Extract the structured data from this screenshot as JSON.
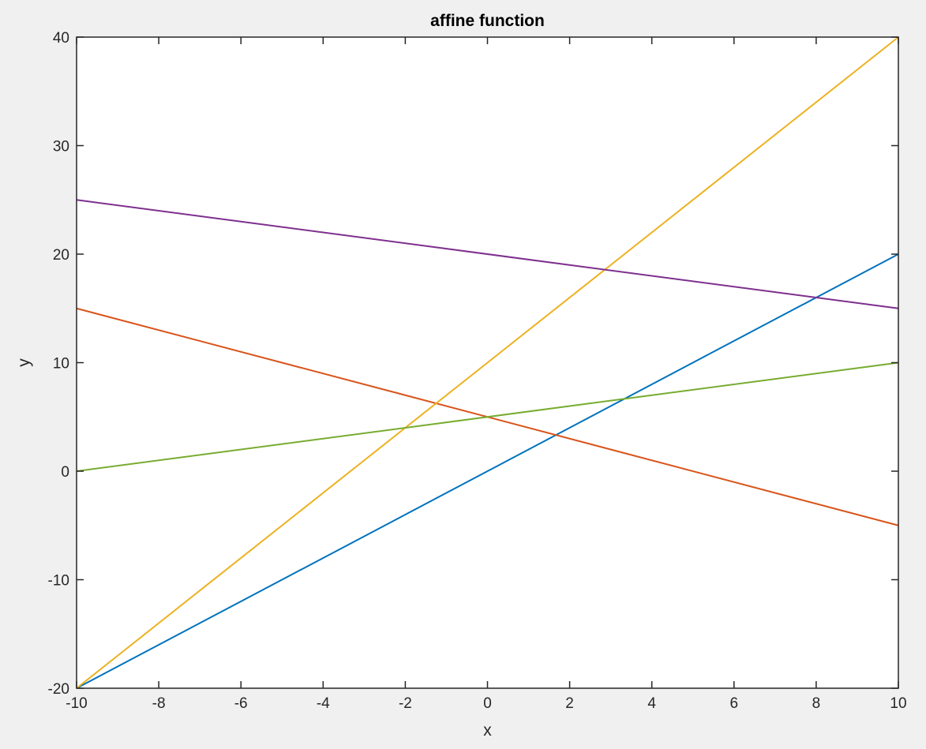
{
  "chart_data": {
    "type": "line",
    "title": "affine function",
    "xlabel": "x",
    "ylabel": "y",
    "xlim": [
      -10,
      10
    ],
    "ylim": [
      -20,
      40
    ],
    "xticks": [
      -10,
      -8,
      -6,
      -4,
      -2,
      0,
      2,
      4,
      6,
      8,
      10
    ],
    "yticks": [
      -20,
      -10,
      0,
      10,
      20,
      30,
      40
    ],
    "xtick_labels": [
      "-10",
      "-8",
      "-6",
      "-4",
      "-2",
      "0",
      "2",
      "4",
      "6",
      "8",
      "10"
    ],
    "ytick_labels": [
      "-20",
      "-10",
      "0",
      "10",
      "20",
      "30",
      "40"
    ],
    "grid": false,
    "series": [
      {
        "color": "#0072bd",
        "x": [
          -10,
          10
        ],
        "y": [
          -20,
          20
        ]
      },
      {
        "color": "#d95319",
        "x": [
          -10,
          10
        ],
        "y": [
          15,
          -5
        ]
      },
      {
        "color": "#edb120",
        "x": [
          -10,
          10
        ],
        "y": [
          -20,
          40
        ]
      },
      {
        "color": "#7e2f8e",
        "x": [
          -10,
          10
        ],
        "y": [
          25,
          15
        ]
      },
      {
        "color": "#77ac30",
        "x": [
          -10,
          10
        ],
        "y": [
          0,
          10
        ]
      }
    ]
  }
}
